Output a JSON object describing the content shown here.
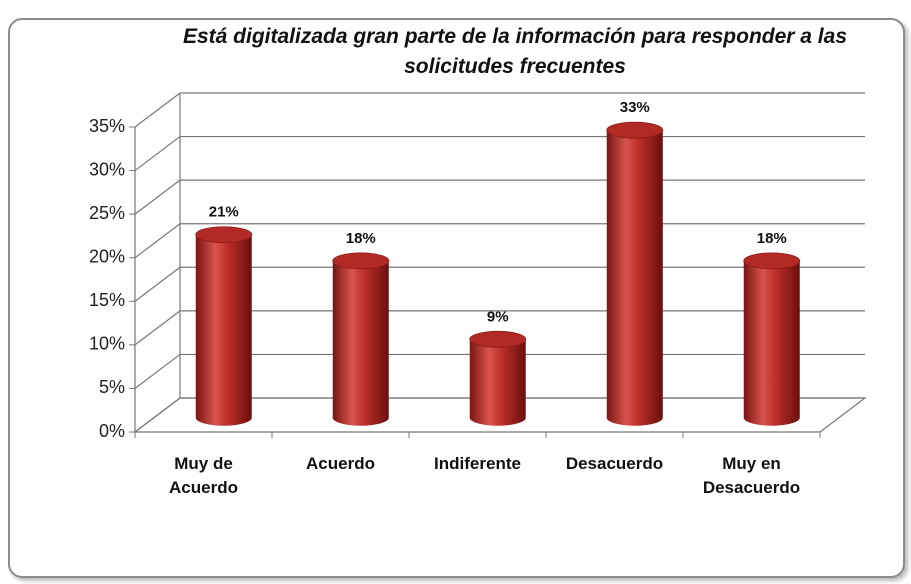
{
  "chart_data": {
    "type": "bar3d",
    "title": "Está digitalizada gran parte de la información para responder a las solicitudes frecuentes",
    "categories": [
      "Muy de Acuerdo",
      "Acuerdo",
      "Indiferente",
      "Desacuerdo",
      "Muy en Desacuerdo"
    ],
    "values": [
      21,
      18,
      9,
      33,
      18
    ],
    "value_labels": [
      "21%",
      "18%",
      "9%",
      "33%",
      "18%"
    ],
    "color": "#c0302c",
    "ylim": [
      0,
      35
    ],
    "yticks": [
      {
        "value": 0,
        "label": "0%"
      },
      {
        "value": 5,
        "label": "5%"
      },
      {
        "value": 10,
        "label": "10%"
      },
      {
        "value": 15,
        "label": "15%"
      },
      {
        "value": 20,
        "label": "20%"
      },
      {
        "value": 25,
        "label": "25%"
      },
      {
        "value": 30,
        "label": "30%"
      },
      {
        "value": 35,
        "label": "35%"
      }
    ],
    "grid": true
  }
}
